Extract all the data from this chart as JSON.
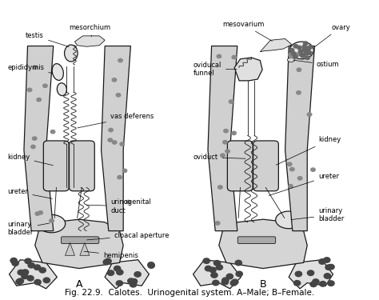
{
  "title": "Fig. 22.9. Calotes. Urinogenital system. A-Male; B-Female.",
  "bg_color": "#ffffff",
  "fig_width": 4.74,
  "fig_height": 3.75,
  "label_A": "A",
  "label_B": "B",
  "font_size_labels": 6.0,
  "font_size_title": 7.5,
  "line_color": "#1a1a1a",
  "text_color": "#000000"
}
